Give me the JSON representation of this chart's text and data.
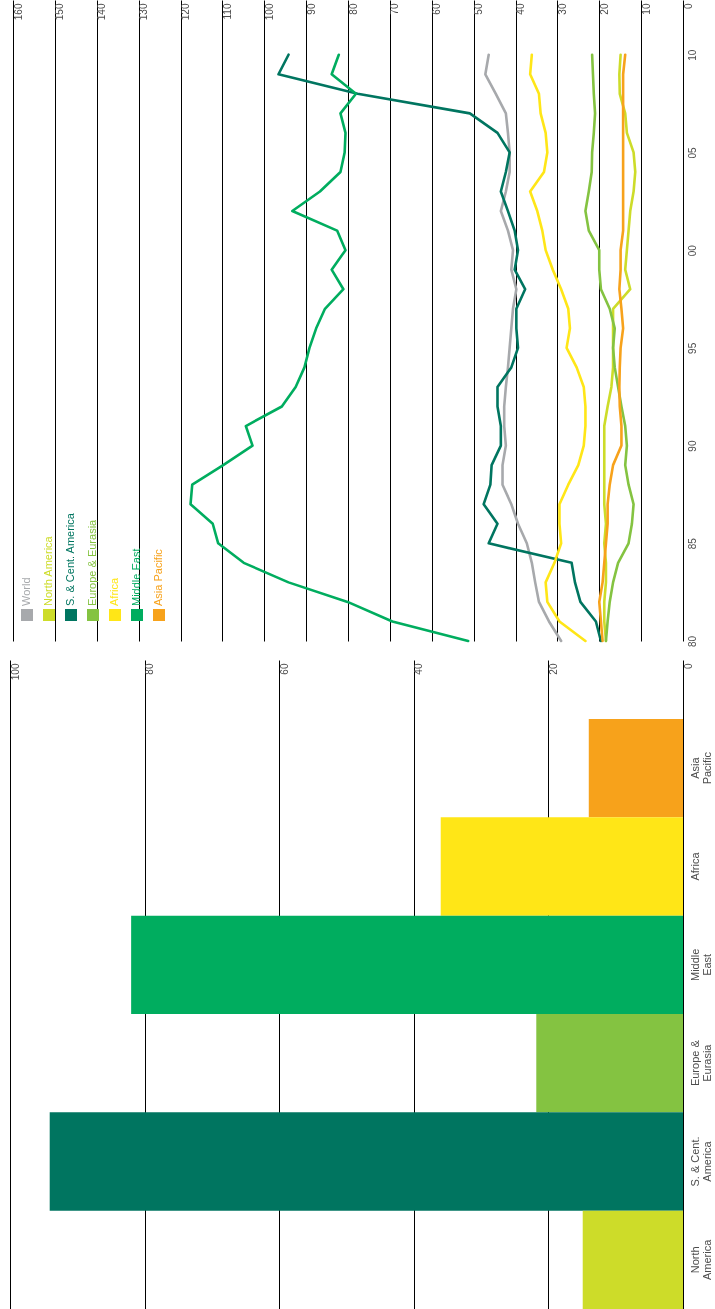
{
  "chart_data": [
    {
      "type": "line",
      "orientation": "horizontal",
      "x": [
        1980,
        1981,
        1982,
        1983,
        1984,
        1985,
        1986,
        1987,
        1988,
        1989,
        1990,
        1991,
        1992,
        1993,
        1994,
        1995,
        1996,
        1997,
        1998,
        1999,
        2000,
        2001,
        2002,
        2003,
        2004,
        2005,
        2006,
        2007,
        2008,
        2009,
        2010
      ],
      "series": [
        {
          "name": "World",
          "color": "#a7a9ac",
          "values": [
            29.1,
            32.0,
            34.4,
            35.3,
            36.1,
            37.3,
            39.4,
            41.0,
            43.1,
            43.1,
            42.3,
            42.7,
            42.7,
            42.3,
            41.8,
            41.4,
            41.0,
            40.6,
            39.8,
            41.0,
            40.6,
            41.8,
            43.5,
            42.3,
            41.4,
            41.4,
            41.8,
            42.3,
            44.7,
            47.2,
            46.4
          ]
        },
        {
          "name": "North America",
          "color": "#cddc29",
          "values": [
            18.4,
            18.8,
            18.8,
            18.4,
            18.4,
            18.8,
            18.4,
            18.8,
            18.8,
            18.8,
            18.8,
            18.8,
            18.0,
            17.1,
            16.7,
            16.7,
            16.7,
            16.7,
            12.6,
            13.8,
            13.4,
            13.0,
            12.6,
            11.8,
            11.4,
            11.8,
            13.4,
            13.8,
            15.1,
            15.2,
            14.9
          ]
        },
        {
          "name": "S. & Cent. America",
          "color": "#007560",
          "values": [
            19.6,
            20.8,
            24.5,
            25.8,
            26.6,
            46.4,
            44.3,
            47.6,
            46.0,
            45.7,
            43.5,
            43.5,
            44.3,
            44.3,
            41.0,
            39.4,
            39.8,
            39.8,
            37.7,
            40.2,
            39.4,
            40.2,
            41.8,
            43.5,
            42.3,
            41.4,
            44.3,
            50.9,
            77.7,
            96.6,
            94.2
          ]
        },
        {
          "name": "Europe & Eurasia",
          "color": "#84c341",
          "values": [
            18.4,
            18.0,
            17.5,
            16.7,
            15.5,
            13.0,
            12.2,
            11.8,
            13.0,
            13.8,
            13.4,
            13.8,
            14.7,
            15.5,
            16.3,
            16.7,
            16.3,
            17.5,
            19.6,
            20.0,
            20.0,
            22.5,
            23.3,
            22.5,
            21.8,
            21.7,
            21.3,
            21.0,
            21.3,
            21.5,
            21.7
          ]
        },
        {
          "name": "Africa",
          "color": "#ffe617",
          "values": [
            23.3,
            29.5,
            32.4,
            32.8,
            30.7,
            29.1,
            29.5,
            29.5,
            27.4,
            25.0,
            23.7,
            23.3,
            23.3,
            23.7,
            25.4,
            27.8,
            27.0,
            27.4,
            29.1,
            31.1,
            32.8,
            33.6,
            34.8,
            36.5,
            33.2,
            32.4,
            32.8,
            34.0,
            34.4,
            36.5,
            36.1
          ]
        },
        {
          "name": "Middle East",
          "color": "#00ad5f",
          "values": [
            51.3,
            69.4,
            80.1,
            94.2,
            104.9,
            111.0,
            112.3,
            117.6,
            117.2,
            109.8,
            102.8,
            104.4,
            95.8,
            92.5,
            90.4,
            89.2,
            87.6,
            85.5,
            81.1,
            83.9,
            80.6,
            82.6,
            93.3,
            86.7,
            81.8,
            80.8,
            80.6,
            81.8,
            78.1,
            83.9,
            82.2
          ]
        },
        {
          "name": "Asia Pacific",
          "color": "#f7a21b",
          "values": [
            19.2,
            19.6,
            20.0,
            19.2,
            18.8,
            18.4,
            18.0,
            18.0,
            17.5,
            16.7,
            14.7,
            14.7,
            15.1,
            15.2,
            15.1,
            14.9,
            14.3,
            14.7,
            15.2,
            14.9,
            14.9,
            14.3,
            14.3,
            14.3,
            14.3,
            14.3,
            14.3,
            14.3,
            14.3,
            14.3,
            13.8
          ]
        }
      ],
      "xlim": [
        160,
        0
      ],
      "xticks": [
        0,
        10,
        20,
        30,
        40,
        50,
        60,
        70,
        80,
        90,
        100,
        110,
        120,
        130,
        140,
        150,
        160
      ],
      "ylim": [
        1980,
        2012.8
      ],
      "yticks": [
        {
          "value": 1980,
          "label": "80"
        },
        {
          "value": 1985,
          "label": "85"
        },
        {
          "value": 1990,
          "label": "90"
        },
        {
          "value": 1995,
          "label": "95"
        },
        {
          "value": 2000,
          "label": "00"
        },
        {
          "value": 2005,
          "label": "05"
        },
        {
          "value": 2010,
          "label": "10"
        }
      ],
      "grid": "x",
      "legend": "bottom left"
    },
    {
      "type": "bar",
      "orientation": "horizontal",
      "categories": [
        "Asia Pacific",
        "Africa",
        "Middle East",
        "Europe & Eurasia",
        "S. & Cent. America",
        "North America"
      ],
      "values": [
        14.0,
        36.0,
        82.0,
        21.8,
        94.1,
        14.9
      ],
      "colors": [
        "#f7a21b",
        "#ffe617",
        "#00ad5f",
        "#84c341",
        "#007560",
        "#cddc29"
      ],
      "xlim": [
        100,
        0
      ],
      "xticks": [
        0,
        20,
        40,
        60,
        80,
        100
      ],
      "grid": "x"
    }
  ]
}
